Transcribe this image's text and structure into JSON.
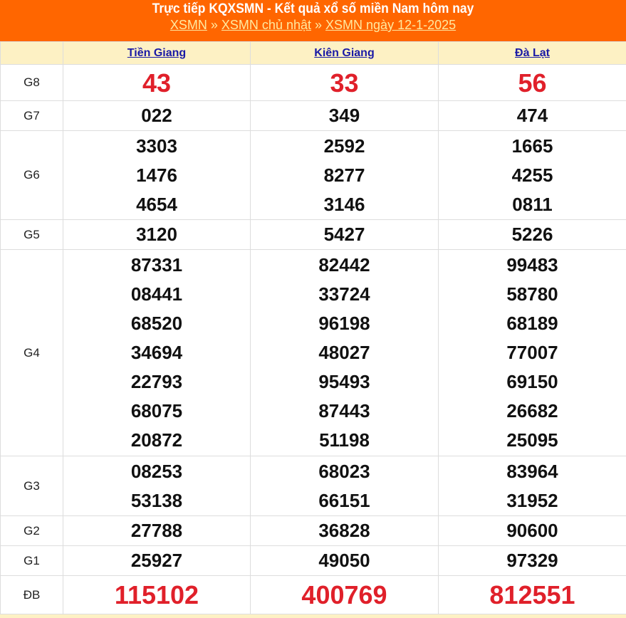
{
  "header": {
    "title": "Trực tiếp KQXSMN - Kết quả xổ số miền Nam hôm nay",
    "breadcrumb": [
      "XSMN",
      "XSMN chủ nhật",
      "XSMN ngày 12-1-2025"
    ],
    "separator": "»"
  },
  "provinces": [
    "Tiền Giang",
    "Kiên Giang",
    "Đà Lạt"
  ],
  "prizes": [
    {
      "label": "G8",
      "values": [
        [
          "43"
        ],
        [
          "33"
        ],
        [
          "56"
        ]
      ]
    },
    {
      "label": "G7",
      "values": [
        [
          "022"
        ],
        [
          "349"
        ],
        [
          "474"
        ]
      ]
    },
    {
      "label": "G6",
      "values": [
        [
          "3303",
          "1476",
          "4654"
        ],
        [
          "2592",
          "8277",
          "3146"
        ],
        [
          "1665",
          "4255",
          "0811"
        ]
      ]
    },
    {
      "label": "G5",
      "values": [
        [
          "3120"
        ],
        [
          "5427"
        ],
        [
          "5226"
        ]
      ]
    },
    {
      "label": "G4",
      "values": [
        [
          "87331",
          "08441",
          "68520",
          "34694",
          "22793",
          "68075",
          "20872"
        ],
        [
          "82442",
          "33724",
          "96198",
          "48027",
          "95493",
          "87443",
          "51198"
        ],
        [
          "99483",
          "58780",
          "68189",
          "77007",
          "69150",
          "26682",
          "25095"
        ]
      ]
    },
    {
      "label": "G3",
      "values": [
        [
          "08253",
          "53138"
        ],
        [
          "68023",
          "66151"
        ],
        [
          "83964",
          "31952"
        ]
      ]
    },
    {
      "label": "G2",
      "values": [
        [
          "27788"
        ],
        [
          "36828"
        ],
        [
          "90600"
        ]
      ]
    },
    {
      "label": "G1",
      "values": [
        [
          "25927"
        ],
        [
          "49050"
        ],
        [
          "97329"
        ]
      ]
    },
    {
      "label": "ĐB",
      "values": [
        [
          "115102"
        ],
        [
          "400769"
        ],
        [
          "812551"
        ]
      ]
    }
  ],
  "colors": {
    "header_bg": "#ff6600",
    "highlight": "#e0202a",
    "table_head_bg": "#fdf1c4"
  }
}
